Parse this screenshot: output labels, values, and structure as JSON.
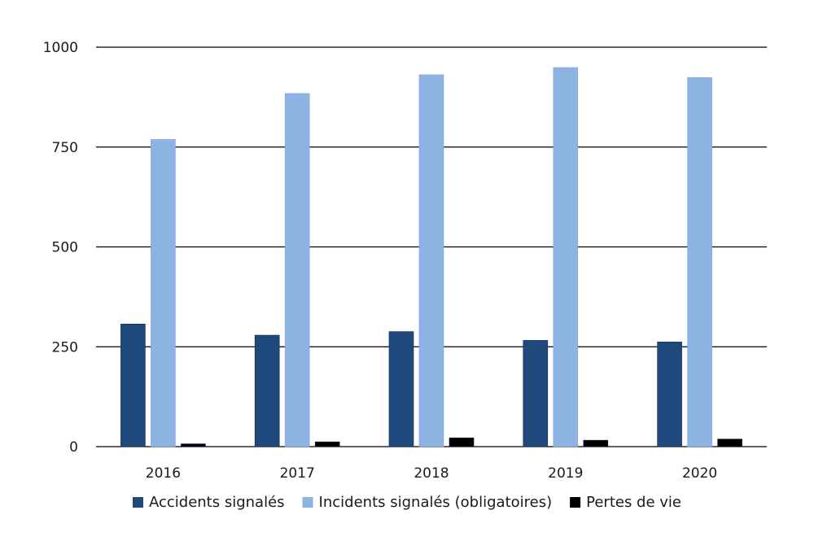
{
  "chart_data": {
    "type": "bar",
    "categories": [
      "2016",
      "2017",
      "2018",
      "2019",
      "2020"
    ],
    "series": [
      {
        "name": "Accidents signalés",
        "color": "#1f497d",
        "values": [
          307,
          279,
          288,
          266,
          262
        ]
      },
      {
        "name": "Incidents signalés (obligatoires)",
        "color": "#8db3e2",
        "values": [
          769,
          884,
          931,
          949,
          924
        ]
      },
      {
        "name": "Pertes de vie",
        "color": "#000000",
        "values": [
          7,
          12,
          22,
          16,
          19
        ]
      }
    ],
    "ylim": [
      0,
      1000
    ],
    "yticks": [
      0,
      250,
      500,
      750,
      1000
    ],
    "grid": true,
    "legend_position": "bottom"
  }
}
